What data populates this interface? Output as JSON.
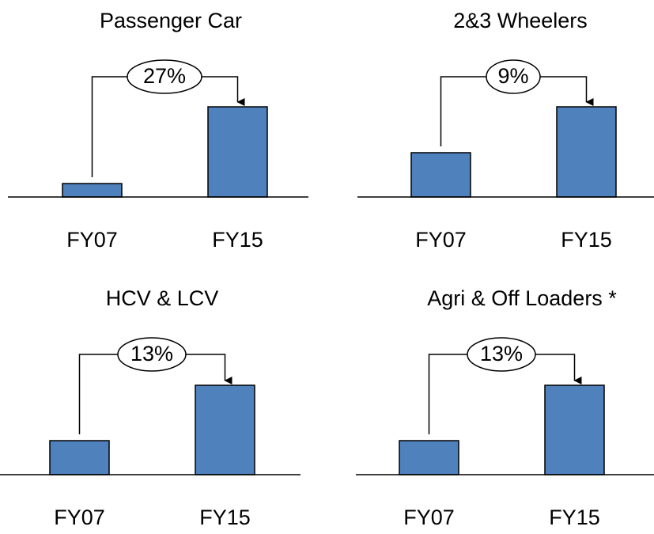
{
  "chart_data": [
    {
      "type": "bar",
      "title": "Passenger Car",
      "categories": [
        "FY07",
        "FY15"
      ],
      "values": [
        17,
        114
      ],
      "color": "#4f81bd",
      "annotation": "27%"
    },
    {
      "type": "bar",
      "title": "2&3 Wheelers",
      "categories": [
        "FY07",
        "FY15"
      ],
      "values": [
        56,
        114
      ],
      "color": "#4f81bd",
      "annotation": "9%"
    },
    {
      "type": "bar",
      "title": "HCV & LCV",
      "categories": [
        "FY07",
        "FY15"
      ],
      "values": [
        43,
        113
      ],
      "color": "#4f81bd",
      "annotation": "13%"
    },
    {
      "type": "bar",
      "title": "Agri & Off Loaders *",
      "categories": [
        "FY07",
        "FY15"
      ],
      "values": [
        43,
        113
      ],
      "color": "#4f81bd",
      "annotation": "13%"
    }
  ]
}
